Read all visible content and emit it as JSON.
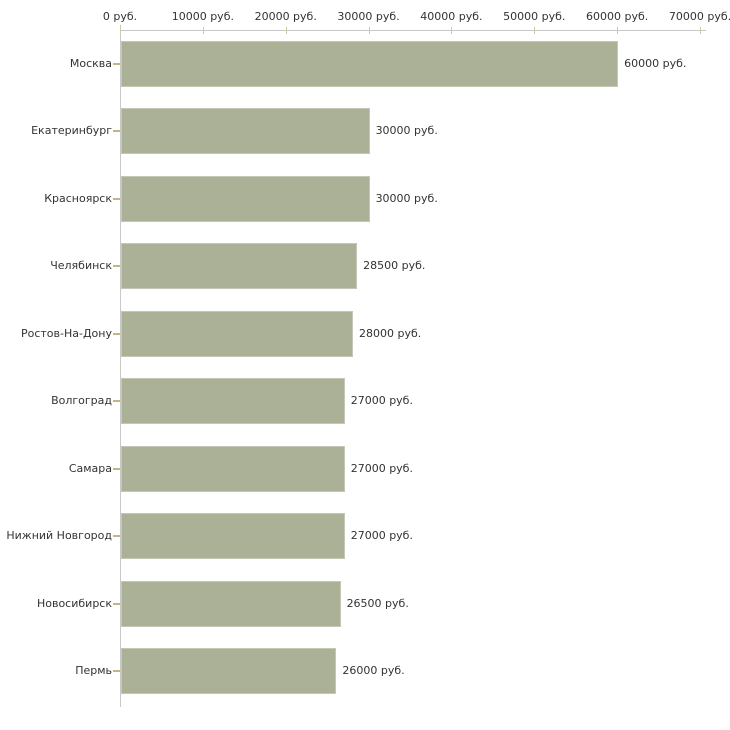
{
  "chart_data": {
    "type": "bar",
    "orientation": "horizontal",
    "title": "",
    "xlabel": "",
    "ylabel": "",
    "unit": "руб.",
    "xlim": [
      0,
      70000
    ],
    "x_ticks": [
      0,
      10000,
      20000,
      30000,
      40000,
      50000,
      60000,
      70000
    ],
    "x_tick_labels": [
      "0 руб.",
      "10000 руб.",
      "20000 руб.",
      "30000 руб.",
      "40000 руб.",
      "50000 руб.",
      "60000 руб.",
      "70000 руб."
    ],
    "categories": [
      "Москва",
      "Екатеринбург",
      "Красноярск",
      "Челябинск",
      "Ростов-На-Дону",
      "Волгоград",
      "Самара",
      "Нижний Новгород",
      "Новосибирск",
      "Пермь"
    ],
    "values": [
      60000,
      30000,
      30000,
      28500,
      28000,
      27000,
      27000,
      27000,
      26500,
      26000
    ],
    "value_labels": [
      "60000 руб.",
      "30000 руб.",
      "30000 руб.",
      "28500 руб.",
      "28000 руб.",
      "27000 руб.",
      "27000 руб.",
      "27000 руб.",
      "26500 руб.",
      "26000 руб."
    ],
    "legend": "none",
    "grid": "off",
    "colors": {
      "bar_fill": "#aab197",
      "bar_border": "#c2c8b5",
      "axis_line": "#c8c8c8",
      "x_tick_mark": "#c9cda0",
      "category_tick_mark": "#c5b67f",
      "text": "#333333",
      "background": "#ffffff"
    }
  }
}
